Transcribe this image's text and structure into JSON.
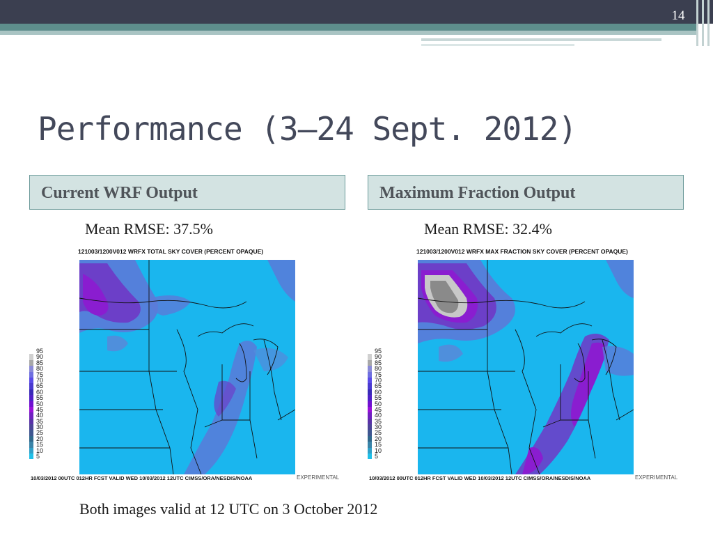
{
  "slide": {
    "number": "14",
    "title": "Performance (3—24 Sept. 2012)",
    "caption": "Both images valid at 12 UTC on 3 October 2012"
  },
  "panels": [
    {
      "header": "Current WRF Output",
      "rmse": "Mean RMSE:  37.5%",
      "map_title": "121003/1200V012 WRFX  TOTAL SKY COVER (PERCENT OPAQUE)",
      "map_footer": "10/03/2012 00UTC 012HR FCST VALID WED 10/03/2012 12UTC   CIMSS/ORA/NESDIS/NOAA",
      "experimental": "EXPERIMENTAL"
    },
    {
      "header": "Maximum Fraction Output",
      "rmse": "Mean RMSE:  32.4%",
      "map_title": "121003/1200V012 WRFX  MAX FRACTION SKY COVER (PERCENT OPAQUE)",
      "map_footer": "10/03/2012 00UTC 012HR FCST VALID WED 10/03/2012 12UTC   CIMSS/ORA/NESDIS/NOAA",
      "experimental": "EXPERIMENTAL"
    }
  ],
  "legend": {
    "labels": [
      "95",
      "90",
      "85",
      "80",
      "75",
      "70",
      "65",
      "60",
      "55",
      "50",
      "45",
      "40",
      "35",
      "30",
      "25",
      "20",
      "15",
      "10",
      "5"
    ],
    "colors": [
      "#ffffff",
      "#d0d0d0",
      "#a8a8a8",
      "#8a8ad8",
      "#6f6fe0",
      "#5a4ae8",
      "#4a3ad0",
      "#3a2ab8",
      "#5020c8",
      "#7010d0",
      "#9810d8",
      "#7020c0",
      "#5a32a8",
      "#4c4498",
      "#3e5690",
      "#30688c",
      "#3a84a8",
      "#30a0c8",
      "#20c0e8"
    ]
  },
  "colors": {
    "sky_base": "#1ab6ee",
    "cloud_light": "#5b7ad8",
    "cloud_mid": "#6c3fc8",
    "cloud_heavy": "#8a1dd0",
    "gray_overcast": "#8a8a8a"
  }
}
